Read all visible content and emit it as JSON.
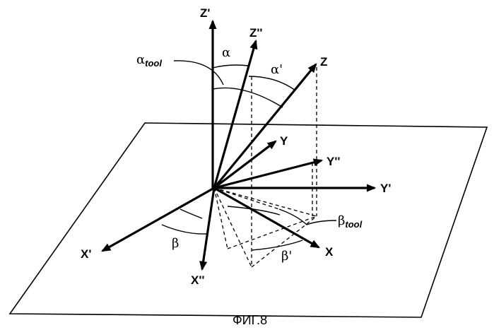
{
  "axes": {
    "z_prime": "Z'",
    "z_double": "Z''",
    "z": "Z",
    "y": "Y",
    "y_double": "Y''",
    "y_prime": "Y'",
    "x_prime": "X'",
    "x_double": "X''",
    "x": "X"
  },
  "angles": {
    "alpha": "α",
    "alpha_prime": "α'",
    "alpha_tool": "α",
    "alpha_tool_sub": "tool",
    "beta": "β",
    "beta_prime": "β'",
    "beta_tool": "β",
    "beta_tool_sub": "tool"
  },
  "caption": "ФИГ.8"
}
